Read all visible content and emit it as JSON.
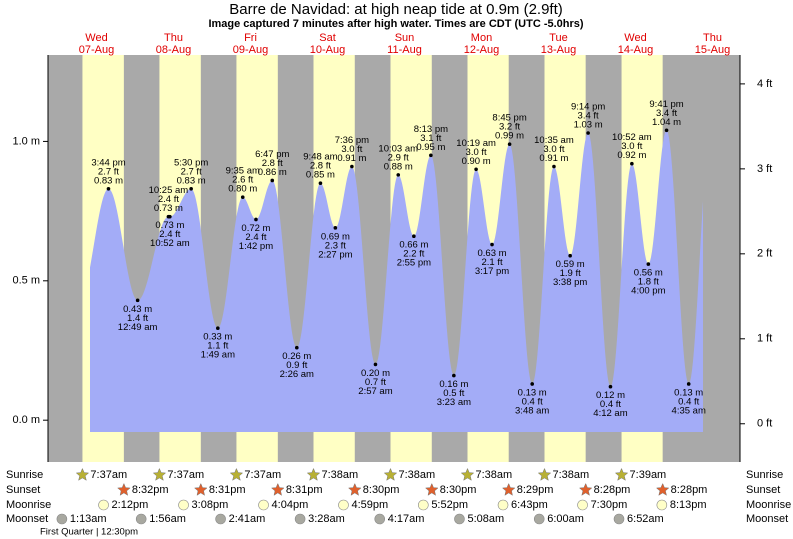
{
  "chart_data": {
    "type": "tide",
    "title": "Barre de Navidad: at high  neap tide at 0.9m (2.9ft)",
    "subtitle": "Image captured 7 minutes after high water. Times are CDT (UTC -5.0hrs)",
    "ylim": [
      -0.15,
      1.31
    ],
    "yticks": [
      {
        "value": 0,
        "label": "0.0 m"
      },
      {
        "value": 0.5,
        "label": "0.5 m"
      },
      {
        "value": 1,
        "label": "1.0 m"
      }
    ],
    "y2lim": [
      -0.45,
      4.34
    ],
    "y2ticks": [
      {
        "value": 0,
        "label": "0 ft"
      },
      {
        "value": 1,
        "label": "1 ft"
      },
      {
        "value": 2,
        "label": "2 ft"
      },
      {
        "value": 3,
        "label": "3 ft"
      },
      {
        "value": 4,
        "label": "4 ft"
      }
    ],
    "color": "#a3acf7",
    "row_labels": {
      "sunrise": "Sunrise",
      "sunset": "Sunset",
      "moonrise": "Moonrise",
      "moonset": "Moonset"
    },
    "moon_phase": "First Quarter | 12:30pm",
    "days": [
      {
        "weekday": "Wed",
        "date": "07-Aug",
        "sunrise": "7:37am",
        "sunset": "8:32pm",
        "moonrise": "2:12pm",
        "moonset": "1:13am",
        "tides": [
          {
            "time": "3:44 pm",
            "m": {
              "value": 0.83,
              "label": "0.83 m"
            },
            "ft": {
              "value": 2.7,
              "label": "2.7 ft"
            }
          }
        ]
      },
      {
        "weekday": "Thu",
        "date": "08-Aug",
        "sunrise": "7:37am",
        "sunset": "8:31pm",
        "moonrise": "3:08pm",
        "moonset": "1:56am",
        "tides": [
          {
            "time": "12:49 am",
            "m": {
              "value": 0.43,
              "label": "0.43 m"
            },
            "ft": {
              "value": 1.4,
              "label": "1.4 ft"
            }
          },
          {
            "time": "10:25 am",
            "m": {
              "value": 0.73,
              "label": "0.73 m"
            },
            "ft": {
              "value": 2.4,
              "label": "2.4 ft"
            }
          },
          {
            "time": "10:52 am",
            "m": {
              "value": 0.73,
              "label": "0.73 m"
            },
            "ft": {
              "value": 2.4,
              "label": "2.4 ft"
            }
          },
          {
            "time": "5:30 pm",
            "m": {
              "value": 0.83,
              "label": "0.83 m"
            },
            "ft": {
              "value": 2.7,
              "label": "2.7 ft"
            }
          }
        ]
      },
      {
        "weekday": "Fri",
        "date": "09-Aug",
        "sunrise": "7:37am",
        "sunset": "8:31pm",
        "moonrise": "4:04pm",
        "moonset": "2:41am",
        "tides": [
          {
            "time": "1:49 am",
            "m": {
              "value": 0.33,
              "label": "0.33 m"
            },
            "ft": {
              "value": 1.1,
              "label": "1.1 ft"
            }
          },
          {
            "time": "9:35 am",
            "m": {
              "value": 0.8,
              "label": "0.80 m"
            },
            "ft": {
              "value": 2.6,
              "label": "2.6 ft"
            }
          },
          {
            "time": "1:42 pm",
            "m": {
              "value": 0.72,
              "label": "0.72 m"
            },
            "ft": {
              "value": 2.4,
              "label": "2.4 ft"
            }
          },
          {
            "time": "6:47 pm",
            "m": {
              "value": 0.86,
              "label": "0.86 m"
            },
            "ft": {
              "value": 2.8,
              "label": "2.8 ft"
            }
          }
        ]
      },
      {
        "weekday": "Sat",
        "date": "10-Aug",
        "sunrise": "7:38am",
        "sunset": "8:30pm",
        "moonrise": "4:59pm",
        "moonset": "3:28am",
        "tides": [
          {
            "time": "2:26 am",
            "m": {
              "value": 0.26,
              "label": "0.26 m"
            },
            "ft": {
              "value": 0.9,
              "label": "0.9 ft"
            }
          },
          {
            "time": "9:48 am",
            "m": {
              "value": 0.85,
              "label": "0.85 m"
            },
            "ft": {
              "value": 2.8,
              "label": "2.8 ft"
            }
          },
          {
            "time": "2:27 pm",
            "m": {
              "value": 0.69,
              "label": "0.69 m"
            },
            "ft": {
              "value": 2.3,
              "label": "2.3 ft"
            }
          },
          {
            "time": "7:36 pm",
            "m": {
              "value": 0.91,
              "label": "0.91 m"
            },
            "ft": {
              "value": 3,
              "label": "3.0 ft"
            }
          }
        ]
      },
      {
        "weekday": "Sun",
        "date": "11-Aug",
        "sunrise": "7:38am",
        "sunset": "8:30pm",
        "moonrise": "5:52pm",
        "moonset": "4:17am",
        "tides": [
          {
            "time": "2:57 am",
            "m": {
              "value": 0.2,
              "label": "0.20 m"
            },
            "ft": {
              "value": 0.7,
              "label": "0.7 ft"
            }
          },
          {
            "time": "10:03 am",
            "m": {
              "value": 0.88,
              "label": "0.88 m"
            },
            "ft": {
              "value": 2.9,
              "label": "2.9 ft"
            }
          },
          {
            "time": "2:55 pm",
            "m": {
              "value": 0.66,
              "label": "0.66 m"
            },
            "ft": {
              "value": 2.2,
              "label": "2.2 ft"
            }
          },
          {
            "time": "8:13 pm",
            "m": {
              "value": 0.95,
              "label": "0.95 m"
            },
            "ft": {
              "value": 3.1,
              "label": "3.1 ft"
            }
          }
        ]
      },
      {
        "weekday": "Mon",
        "date": "12-Aug",
        "sunrise": "7:38am",
        "sunset": "8:29pm",
        "moonrise": "6:43pm",
        "moonset": "5:08am",
        "tides": [
          {
            "time": "3:23 am",
            "m": {
              "value": 0.16,
              "label": "0.16 m"
            },
            "ft": {
              "value": 0.5,
              "label": "0.5 ft"
            }
          },
          {
            "time": "10:19 am",
            "m": {
              "value": 0.9,
              "label": "0.90 m"
            },
            "ft": {
              "value": 3,
              "label": "3.0 ft"
            }
          },
          {
            "time": "3:17 pm",
            "m": {
              "value": 0.63,
              "label": "0.63 m"
            },
            "ft": {
              "value": 2.1,
              "label": "2.1 ft"
            }
          },
          {
            "time": "8:45 pm",
            "m": {
              "value": 0.99,
              "label": "0.99 m"
            },
            "ft": {
              "value": 3.2,
              "label": "3.2 ft"
            }
          }
        ]
      },
      {
        "weekday": "Tue",
        "date": "13-Aug",
        "sunrise": "7:38am",
        "sunset": "8:28pm",
        "moonrise": "7:30pm",
        "moonset": "6:00am",
        "tides": [
          {
            "time": "3:48 am",
            "m": {
              "value": 0.13,
              "label": "0.13 m"
            },
            "ft": {
              "value": 0.4,
              "label": "0.4 ft"
            }
          },
          {
            "time": "10:35 am",
            "m": {
              "value": 0.91,
              "label": "0.91 m"
            },
            "ft": {
              "value": 3,
              "label": "3.0 ft"
            }
          },
          {
            "time": "3:38 pm",
            "m": {
              "value": 0.59,
              "label": "0.59 m"
            },
            "ft": {
              "value": 1.9,
              "label": "1.9 ft"
            }
          },
          {
            "time": "9:14 pm",
            "m": {
              "value": 1.03,
              "label": "1.03 m"
            },
            "ft": {
              "value": 3.4,
              "label": "3.4 ft"
            }
          }
        ]
      },
      {
        "weekday": "Wed",
        "date": "14-Aug",
        "sunrise": "7:39am",
        "sunset": "8:28pm",
        "moonrise": "8:13pm",
        "moonset": "6:52am",
        "tides": [
          {
            "time": "4:12 am",
            "m": {
              "value": 0.12,
              "label": "0.12 m"
            },
            "ft": {
              "value": 0.4,
              "label": "0.4 ft"
            }
          },
          {
            "time": "10:52 am",
            "m": {
              "value": 0.92,
              "label": "0.92 m"
            },
            "ft": {
              "value": 3,
              "label": "3.0 ft"
            }
          },
          {
            "time": "4:00 pm",
            "m": {
              "value": 0.56,
              "label": "0.56 m"
            },
            "ft": {
              "value": 1.8,
              "label": "1.8 ft"
            }
          },
          {
            "time": "9:41 pm",
            "m": {
              "value": 1.04,
              "label": "1.04 m"
            },
            "ft": {
              "value": 3.4,
              "label": "3.4 ft"
            }
          }
        ]
      },
      {
        "weekday": "Thu",
        "date": "15-Aug",
        "tides": [
          {
            "time": "4:35 am",
            "m": {
              "value": 0.13,
              "label": "0.13 m"
            },
            "ft": {
              "value": 0.4,
              "label": "0.4 ft"
            }
          }
        ]
      }
    ]
  }
}
